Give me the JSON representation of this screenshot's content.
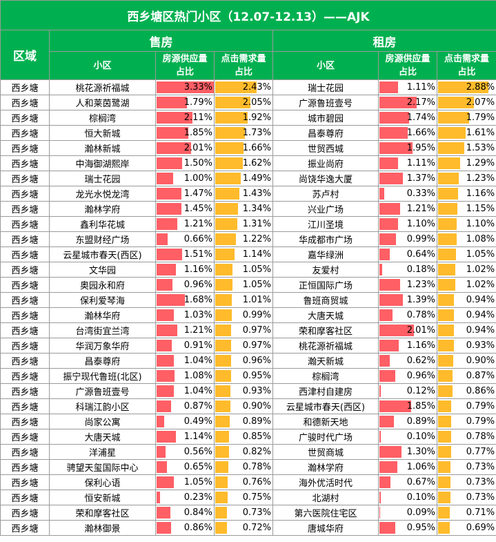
{
  "title": "西乡塘区热门小区（12.07-12.13）——AJK",
  "headers": {
    "area": "区域",
    "sale": "售房",
    "rent": "租房",
    "name": "小区",
    "supply_line1": "房源供应量",
    "supply_line2": "占比",
    "demand_line1": "点击需求量",
    "demand_line2": "占比"
  },
  "colors": {
    "header_green": "#00b050",
    "supply_bar": "#ff5f65",
    "demand_bar": "#ffbb2b"
  },
  "bar_scale_max": 3.33,
  "rows": [
    {
      "area": "西乡塘",
      "sale_name": "桃花源祈福城",
      "sale_supply": "3.33%",
      "sale_demand": "2.43%",
      "rent_name": "瑞士花园",
      "rent_supply": "1.11%",
      "rent_demand": "2.88%"
    },
    {
      "area": "西乡塘",
      "sale_name": "人和莱茵鹭湖",
      "sale_supply": "1.79%",
      "sale_demand": "2.05%",
      "rent_name": "广源鲁班壹号",
      "rent_supply": "2.17%",
      "rent_demand": "2.07%"
    },
    {
      "area": "西乡塘",
      "sale_name": "棕榈湾",
      "sale_supply": "2.11%",
      "sale_demand": "1.92%",
      "rent_name": "城市碧园",
      "rent_supply": "1.74%",
      "rent_demand": "1.79%"
    },
    {
      "area": "西乡塘",
      "sale_name": "恒大新城",
      "sale_supply": "1.85%",
      "sale_demand": "1.73%",
      "rent_name": "昌泰尊府",
      "rent_supply": "1.66%",
      "rent_demand": "1.61%"
    },
    {
      "area": "西乡塘",
      "sale_name": "瀚林新城",
      "sale_supply": "2.01%",
      "sale_demand": "1.66%",
      "rent_name": "世贸西城",
      "rent_supply": "1.95%",
      "rent_demand": "1.53%"
    },
    {
      "area": "西乡塘",
      "sale_name": "中海御湖熙岸",
      "sale_supply": "1.50%",
      "sale_demand": "1.62%",
      "rent_name": "振业尚府",
      "rent_supply": "1.11%",
      "rent_demand": "1.29%"
    },
    {
      "area": "西乡塘",
      "sale_name": "瑞士花园",
      "sale_supply": "1.00%",
      "sale_demand": "1.49%",
      "rent_name": "尚饶华逸大厦",
      "rent_supply": "1.37%",
      "rent_demand": "1.23%"
    },
    {
      "area": "西乡塘",
      "sale_name": "龙光水悦龙湾",
      "sale_supply": "1.47%",
      "sale_demand": "1.43%",
      "rent_name": "苏卢村",
      "rent_supply": "0.33%",
      "rent_demand": "1.16%"
    },
    {
      "area": "西乡塘",
      "sale_name": "瀚林学府",
      "sale_supply": "1.45%",
      "sale_demand": "1.34%",
      "rent_name": "兴业广场",
      "rent_supply": "1.21%",
      "rent_demand": "1.15%"
    },
    {
      "area": "西乡塘",
      "sale_name": "鑫利华花城",
      "sale_supply": "1.21%",
      "sale_demand": "1.31%",
      "rent_name": "江川圣境",
      "rent_supply": "1.10%",
      "rent_demand": "1.10%"
    },
    {
      "area": "西乡塘",
      "sale_name": "东盟财经广场",
      "sale_supply": "0.66%",
      "sale_demand": "1.22%",
      "rent_name": "华成都市广场",
      "rent_supply": "0.99%",
      "rent_demand": "1.08%"
    },
    {
      "area": "西乡塘",
      "sale_name": "云星城市春天(西区)",
      "sale_supply": "1.51%",
      "sale_demand": "1.14%",
      "rent_name": "嘉华绿洲",
      "rent_supply": "0.64%",
      "rent_demand": "1.05%"
    },
    {
      "area": "西乡塘",
      "sale_name": "文华园",
      "sale_supply": "1.16%",
      "sale_demand": "1.05%",
      "rent_name": "友爱村",
      "rent_supply": "0.18%",
      "rent_demand": "1.02%"
    },
    {
      "area": "西乡塘",
      "sale_name": "奥园永和府",
      "sale_supply": "0.96%",
      "sale_demand": "1.05%",
      "rent_name": "正恒国际广场",
      "rent_supply": "1.23%",
      "rent_demand": "1.02%"
    },
    {
      "area": "西乡塘",
      "sale_name": "保利爱琴海",
      "sale_supply": "1.68%",
      "sale_demand": "1.01%",
      "rent_name": "鲁班商贸城",
      "rent_supply": "1.39%",
      "rent_demand": "0.94%"
    },
    {
      "area": "西乡塘",
      "sale_name": "瀚林华府",
      "sale_supply": "1.03%",
      "sale_demand": "0.99%",
      "rent_name": "大唐天城",
      "rent_supply": "0.78%",
      "rent_demand": "0.94%"
    },
    {
      "area": "西乡塘",
      "sale_name": "台湾街宜兰湾",
      "sale_supply": "1.21%",
      "sale_demand": "0.97%",
      "rent_name": "荣和摩客社区",
      "rent_supply": "2.01%",
      "rent_demand": "0.94%"
    },
    {
      "area": "西乡塘",
      "sale_name": "华润万象华府",
      "sale_supply": "0.91%",
      "sale_demand": "0.97%",
      "rent_name": "桃花源祈福城",
      "rent_supply": "1.16%",
      "rent_demand": "0.93%"
    },
    {
      "area": "西乡塘",
      "sale_name": "昌泰尊府",
      "sale_supply": "1.04%",
      "sale_demand": "0.96%",
      "rent_name": "瀚天新城",
      "rent_supply": "0.62%",
      "rent_demand": "0.90%"
    },
    {
      "area": "西乡塘",
      "sale_name": "振宁现代鲁班(北区)",
      "sale_supply": "1.08%",
      "sale_demand": "0.95%",
      "rent_name": "棕榈湾",
      "rent_supply": "0.96%",
      "rent_demand": "0.87%"
    },
    {
      "area": "西乡塘",
      "sale_name": "广源鲁班壹号",
      "sale_supply": "1.04%",
      "sale_demand": "0.93%",
      "rent_name": "西津村自建房",
      "rent_supply": "0.12%",
      "rent_demand": "0.86%"
    },
    {
      "area": "西乡塘",
      "sale_name": "科瑞江韵小区",
      "sale_supply": "0.87%",
      "sale_demand": "0.90%",
      "rent_name": "云星城市春天(西区)",
      "rent_supply": "1.85%",
      "rent_demand": "0.79%"
    },
    {
      "area": "西乡塘",
      "sale_name": "尚家公寓",
      "sale_supply": "0.49%",
      "sale_demand": "0.89%",
      "rent_name": "和德新天地",
      "rent_supply": "0.89%",
      "rent_demand": "0.79%"
    },
    {
      "area": "西乡塘",
      "sale_name": "大唐天城",
      "sale_supply": "1.14%",
      "sale_demand": "0.85%",
      "rent_name": "广骏时代广场",
      "rent_supply": "0.10%",
      "rent_demand": "0.78%"
    },
    {
      "area": "西乡塘",
      "sale_name": "洋浦星",
      "sale_supply": "0.56%",
      "sale_demand": "0.82%",
      "rent_name": "世贸商城",
      "rent_supply": "1.30%",
      "rent_demand": "0.77%"
    },
    {
      "area": "西乡塘",
      "sale_name": "骋望天玺国际中心",
      "sale_supply": "0.65%",
      "sale_demand": "0.78%",
      "rent_name": "瀚林学府",
      "rent_supply": "1.06%",
      "rent_demand": "0.73%"
    },
    {
      "area": "西乡塘",
      "sale_name": "保利心语",
      "sale_supply": "1.05%",
      "sale_demand": "0.76%",
      "rent_name": "海外优活时代",
      "rent_supply": "0.67%",
      "rent_demand": "0.73%"
    },
    {
      "area": "西乡塘",
      "sale_name": "恒安新城",
      "sale_supply": "0.23%",
      "sale_demand": "0.75%",
      "rent_name": "北湖村",
      "rent_supply": "0.10%",
      "rent_demand": "0.73%"
    },
    {
      "area": "西乡塘",
      "sale_name": "荣和摩客社区",
      "sale_supply": "0.84%",
      "sale_demand": "0.73%",
      "rent_name": "第六医院住宅区",
      "rent_supply": "0.09%",
      "rent_demand": "0.71%"
    },
    {
      "area": "西乡塘",
      "sale_name": "瀚林御景",
      "sale_supply": "0.86%",
      "sale_demand": "0.72%",
      "rent_name": "唐城华府",
      "rent_supply": "0.95%",
      "rent_demand": "0.69%"
    }
  ]
}
